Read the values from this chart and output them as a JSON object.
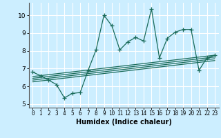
{
  "title": "",
  "xlabel": "Humidex (Indice chaleur)",
  "bg_color": "#cceeff",
  "line_color": "#1a6b5a",
  "grid_color": "#ffffff",
  "xlim": [
    -0.5,
    23.5
  ],
  "ylim": [
    4.8,
    10.7
  ],
  "xticks": [
    0,
    1,
    2,
    3,
    4,
    5,
    6,
    7,
    8,
    9,
    10,
    11,
    12,
    13,
    14,
    15,
    16,
    17,
    18,
    19,
    20,
    21,
    22,
    23
  ],
  "yticks": [
    5,
    6,
    7,
    8,
    9,
    10
  ],
  "series1_x": [
    0,
    1,
    2,
    3,
    4,
    5,
    6,
    7,
    8,
    9,
    10,
    11,
    12,
    13,
    14,
    15,
    16,
    17,
    18,
    19,
    20,
    21,
    22,
    23
  ],
  "series1_y": [
    6.8,
    6.6,
    6.35,
    6.1,
    5.35,
    5.6,
    5.65,
    6.9,
    8.05,
    10.0,
    9.4,
    8.05,
    8.5,
    8.75,
    8.55,
    10.35,
    7.6,
    8.7,
    9.05,
    9.2,
    9.2,
    6.9,
    7.6,
    7.75
  ],
  "trend1_x": [
    0,
    23
  ],
  "trend1_y": [
    6.55,
    7.75
  ],
  "trend2_x": [
    0,
    23
  ],
  "trend2_y": [
    6.45,
    7.65
  ],
  "trend3_x": [
    0,
    23
  ],
  "trend3_y": [
    6.35,
    7.55
  ],
  "trend4_x": [
    0,
    23
  ],
  "trend4_y": [
    6.25,
    7.45
  ]
}
